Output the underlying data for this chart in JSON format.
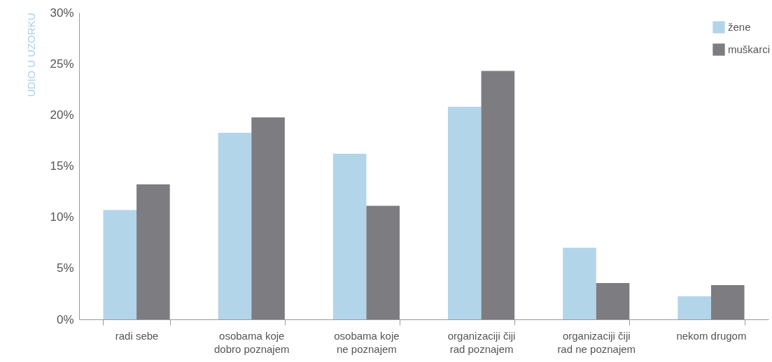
{
  "chart_data": {
    "type": "bar",
    "ylabel": "UDIO U UZORKU",
    "categories": [
      "radi sebe",
      "osobama koje\ndobro poznajem",
      "osobama koje\nne poznajem",
      "organizaciji čiji\nrad poznajem",
      "organizaciji čiji\nrad ne poznajem",
      "nekom drugom"
    ],
    "series": [
      {
        "name": "žene",
        "color": "#b3d5ea",
        "values": [
          10.7,
          18.25,
          16.2,
          20.8,
          7.0,
          2.25
        ]
      },
      {
        "name": "muškarci",
        "color": "#7d7c81",
        "values": [
          13.2,
          19.75,
          11.1,
          24.3,
          3.55,
          3.35
        ]
      }
    ],
    "ylim": [
      0,
      30
    ],
    "yticks": [
      {
        "value": 0,
        "label": "0%"
      },
      {
        "value": 5,
        "label": "5%"
      },
      {
        "value": 10,
        "label": "10%"
      },
      {
        "value": 15,
        "label": "15%"
      },
      {
        "value": 20,
        "label": "20%"
      },
      {
        "value": 25,
        "label": "25%"
      },
      {
        "value": 30,
        "label": "30%"
      }
    ],
    "grid": false,
    "legend": "top right"
  }
}
